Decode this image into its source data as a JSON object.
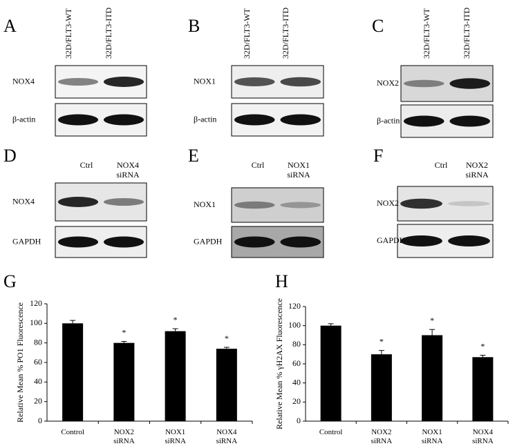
{
  "blots": [
    {
      "panel": "A",
      "lanes": [
        "32D/FLT3-WT",
        "32D/FLT3-ITD"
      ],
      "rows": [
        "NOX4",
        "β-actin"
      ]
    },
    {
      "panel": "B",
      "lanes": [
        "32D/FLT3-WT",
        "32D/FLT3-ITD"
      ],
      "rows": [
        "NOX1",
        "β-actin"
      ]
    },
    {
      "panel": "C",
      "lanes": [
        "32D/FLT3-WT",
        "32D/FLT3-ITD"
      ],
      "rows": [
        "NOX2",
        "β-actin"
      ]
    },
    {
      "panel": "D",
      "lanes": [
        "Ctrl",
        "NOX4 siRNA"
      ],
      "rows": [
        "NOX4",
        "GAPDH"
      ]
    },
    {
      "panel": "E",
      "lanes": [
        "Ctrl",
        "NOX1 siRNA"
      ],
      "rows": [
        "NOX1",
        "GAPDH"
      ]
    },
    {
      "panel": "F",
      "lanes": [
        "Ctrl",
        "NOX2 siRNA"
      ],
      "rows": [
        "NOX2",
        "GAPDH"
      ]
    }
  ],
  "chart_data": [
    {
      "type": "bar",
      "panel": "G",
      "ylabel": "Relative Mean % PO1 Fluorescence",
      "categories": [
        "Control",
        "NOX2 siRNA",
        "NOX1 siRNA",
        "NOX4 siRNA"
      ],
      "values": [
        100,
        80,
        92,
        74
      ],
      "errors": [
        3,
        1.5,
        2.5,
        1.5
      ],
      "significance": [
        null,
        "*",
        "*",
        "*"
      ],
      "color": "#000000",
      "ylim": [
        0,
        120
      ],
      "yticks": [
        0,
        20,
        40,
        60,
        80,
        100,
        120
      ]
    },
    {
      "type": "bar",
      "panel": "H",
      "ylabel": "Relative Mean % γH2AX Fluorescence",
      "categories": [
        "Control",
        "NOX2 siRNA",
        "NOX1 siRNA",
        "NOX4 siRNA"
      ],
      "values": [
        100,
        70,
        90,
        67
      ],
      "errors": [
        2,
        4,
        6,
        2
      ],
      "significance": [
        null,
        "*",
        "*",
        "*"
      ],
      "color": "#000000",
      "ylim": [
        0,
        120
      ],
      "yticks": [
        0,
        20,
        40,
        60,
        80,
        100,
        120
      ]
    }
  ]
}
